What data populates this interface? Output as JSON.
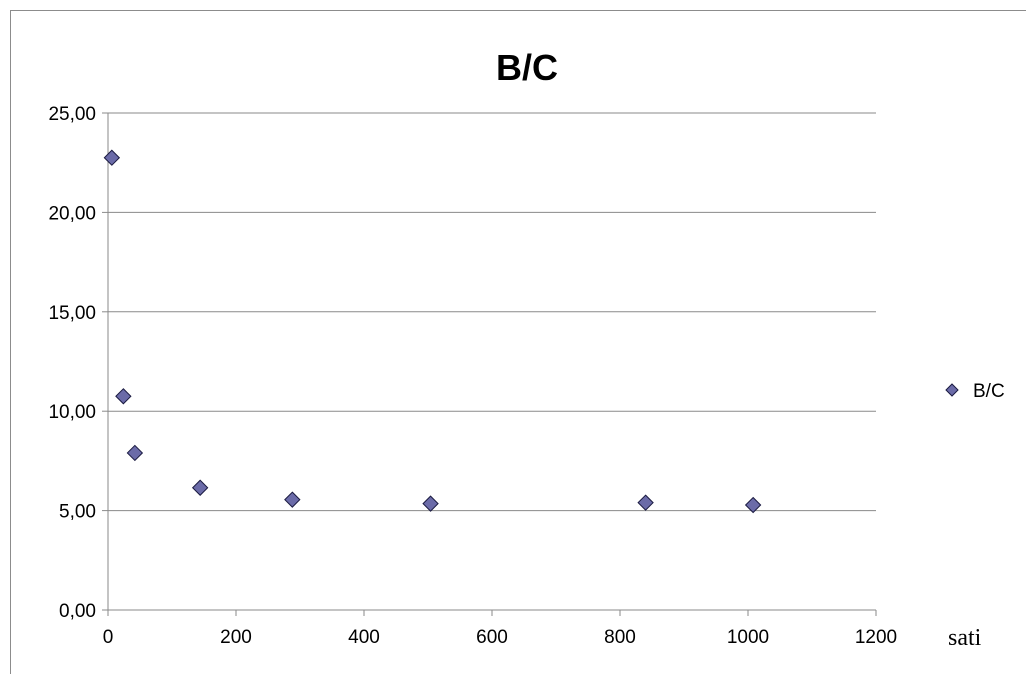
{
  "chart_data": {
    "type": "scatter",
    "title": "B/C",
    "xlabel": "sati",
    "ylabel": "",
    "xlim": [
      0,
      1200
    ],
    "ylim": [
      0,
      25
    ],
    "xticks": [
      0,
      200,
      400,
      600,
      800,
      1000,
      1200
    ],
    "yticks": [
      0,
      5,
      10,
      15,
      20,
      25
    ],
    "xtick_labels": [
      "0",
      "200",
      "400",
      "600",
      "800",
      "1000",
      "1200"
    ],
    "ytick_labels": [
      "0,00",
      "5,00",
      "10,00",
      "15,00",
      "20,00",
      "25,00"
    ],
    "grid": "horizontal",
    "legend_position": "right",
    "series": [
      {
        "name": "B/C",
        "color": "#6b6ba8",
        "marker": "diamond",
        "x": [
          6,
          24,
          42,
          144,
          288,
          504,
          840,
          1008
        ],
        "y": [
          22.75,
          10.75,
          7.9,
          6.15,
          5.55,
          5.35,
          5.4,
          5.28
        ]
      }
    ]
  }
}
